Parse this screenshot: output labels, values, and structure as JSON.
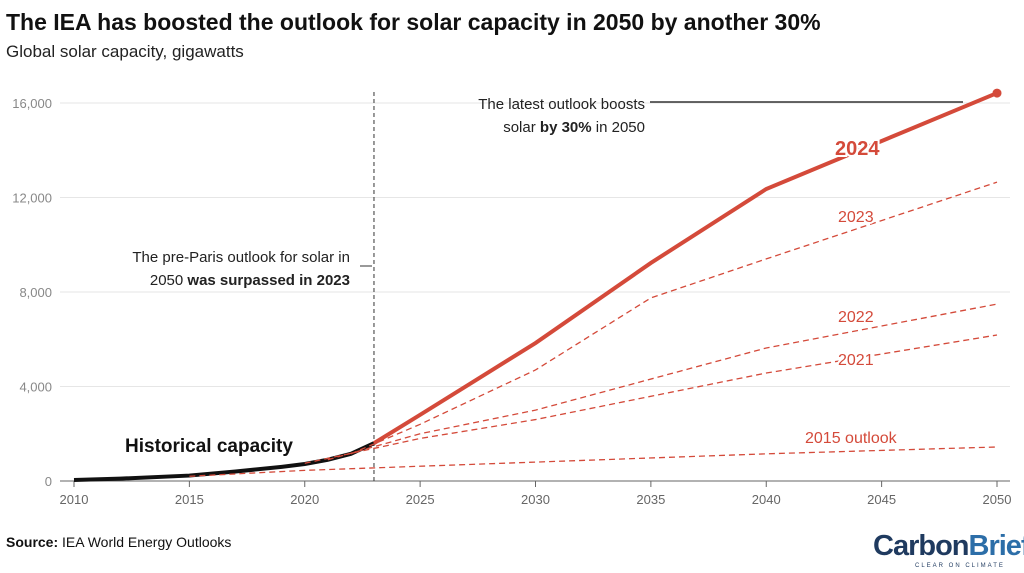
{
  "chart_data": {
    "type": "line",
    "title": "The IEA has boosted the outlook for solar capacity in 2050 by another 30%",
    "subtitle": "Global solar capacity, gigawatts",
    "source_label": "Source:",
    "source_text": "IEA World Energy Outlooks",
    "xlim": [
      2010,
      2050
    ],
    "ylim": [
      0,
      16000
    ],
    "xticks": [
      2010,
      2015,
      2020,
      2025,
      2030,
      2035,
      2040,
      2045,
      2050
    ],
    "yticks": [
      {
        "v": 0,
        "label": "0"
      },
      {
        "v": 4000,
        "label": "4,000"
      },
      {
        "v": 8000,
        "label": "8,000"
      },
      {
        "v": 12000,
        "label": "12,000"
      },
      {
        "v": 16000,
        "label": "16,000"
      }
    ],
    "grid": true,
    "colors": {
      "historical": "#111111",
      "outlook": "#d44a3a",
      "axis": "#666666",
      "grid": "#e6e6e6"
    },
    "series": [
      {
        "name": "Historical capacity",
        "style": "solid-black",
        "x": [
          2010,
          2012,
          2015,
          2017,
          2019,
          2020,
          2021,
          2022,
          2023
        ],
        "y": [
          40,
          100,
          230,
          400,
          600,
          720,
          900,
          1150,
          1600
        ]
      },
      {
        "name": "2015 outlook",
        "style": "dashed",
        "x": [
          2015,
          2020,
          2030,
          2040,
          2050
        ],
        "y": [
          200,
          450,
          800,
          1150,
          1440
        ]
      },
      {
        "name": "2021",
        "style": "dashed",
        "x": [
          2020,
          2025,
          2030,
          2040,
          2050
        ],
        "y": [
          750,
          1800,
          2600,
          4570,
          6180
        ]
      },
      {
        "name": "2022",
        "style": "dashed",
        "x": [
          2021,
          2025,
          2030,
          2040,
          2050
        ],
        "y": [
          900,
          2000,
          3000,
          5630,
          7490
        ]
      },
      {
        "name": "2023",
        "style": "dashed",
        "x": [
          2022,
          2025,
          2030,
          2035,
          2040,
          2050
        ],
        "y": [
          1150,
          2400,
          4700,
          7750,
          9400,
          12650
        ]
      },
      {
        "name": "2024",
        "style": "solid-bold",
        "x": [
          2023,
          2025,
          2030,
          2035,
          2040,
          2050
        ],
        "y": [
          1600,
          2800,
          5840,
          9230,
          12360,
          16420
        ]
      }
    ],
    "annotations": {
      "vline_year": 2023,
      "paris_line1": "The pre-Paris outlook for solar in",
      "paris_line2a": "2050 ",
      "paris_line2b": "was surpassed in 2023",
      "latest_line1": "The latest outlook boosts",
      "latest_line2a": "solar ",
      "latest_line2b": "by 30%",
      "latest_line2c": " in 2050"
    },
    "logo": {
      "text1": "Carbon",
      "text2": "Brief",
      "tagline": "CLEAR ON CLIMATE"
    }
  }
}
